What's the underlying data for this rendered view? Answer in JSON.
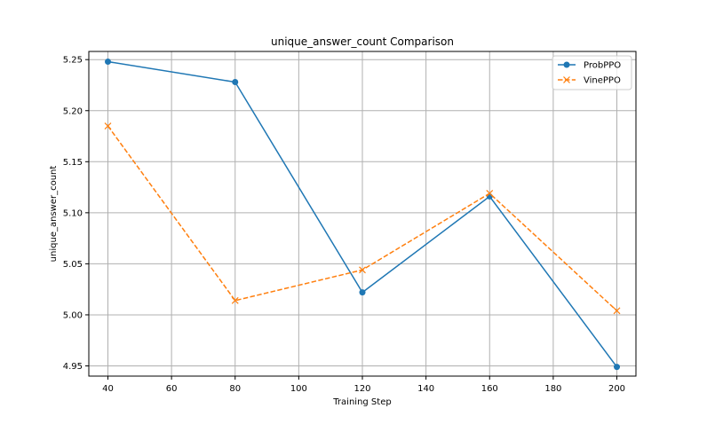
{
  "chart_data": {
    "type": "line",
    "title": "unique_answer_count Comparison",
    "xlabel": "Training Step",
    "ylabel": "unique_answer_count",
    "x": [
      40,
      80,
      120,
      160,
      200
    ],
    "xlim": [
      34,
      206
    ],
    "ylim": [
      4.94,
      5.258
    ],
    "xticks": [
      40,
      60,
      80,
      100,
      120,
      140,
      160,
      180,
      200
    ],
    "yticks": [
      4.95,
      5.0,
      5.05,
      5.1,
      5.15,
      5.2,
      5.25
    ],
    "ytick_labels": [
      "4.95",
      "5.00",
      "5.05",
      "5.10",
      "5.15",
      "5.20",
      "5.25"
    ],
    "grid": true,
    "legend_position": "top-right",
    "series": [
      {
        "name": "ProbPPO",
        "values": [
          5.248,
          5.228,
          5.022,
          5.116,
          4.949
        ],
        "color": "#1f77b4",
        "marker": "circle",
        "line_style": "solid"
      },
      {
        "name": "VinePPO",
        "values": [
          5.185,
          5.014,
          5.044,
          5.119,
          5.004
        ],
        "color": "#ff7f0e",
        "marker": "x",
        "line_style": "dashed"
      }
    ]
  }
}
